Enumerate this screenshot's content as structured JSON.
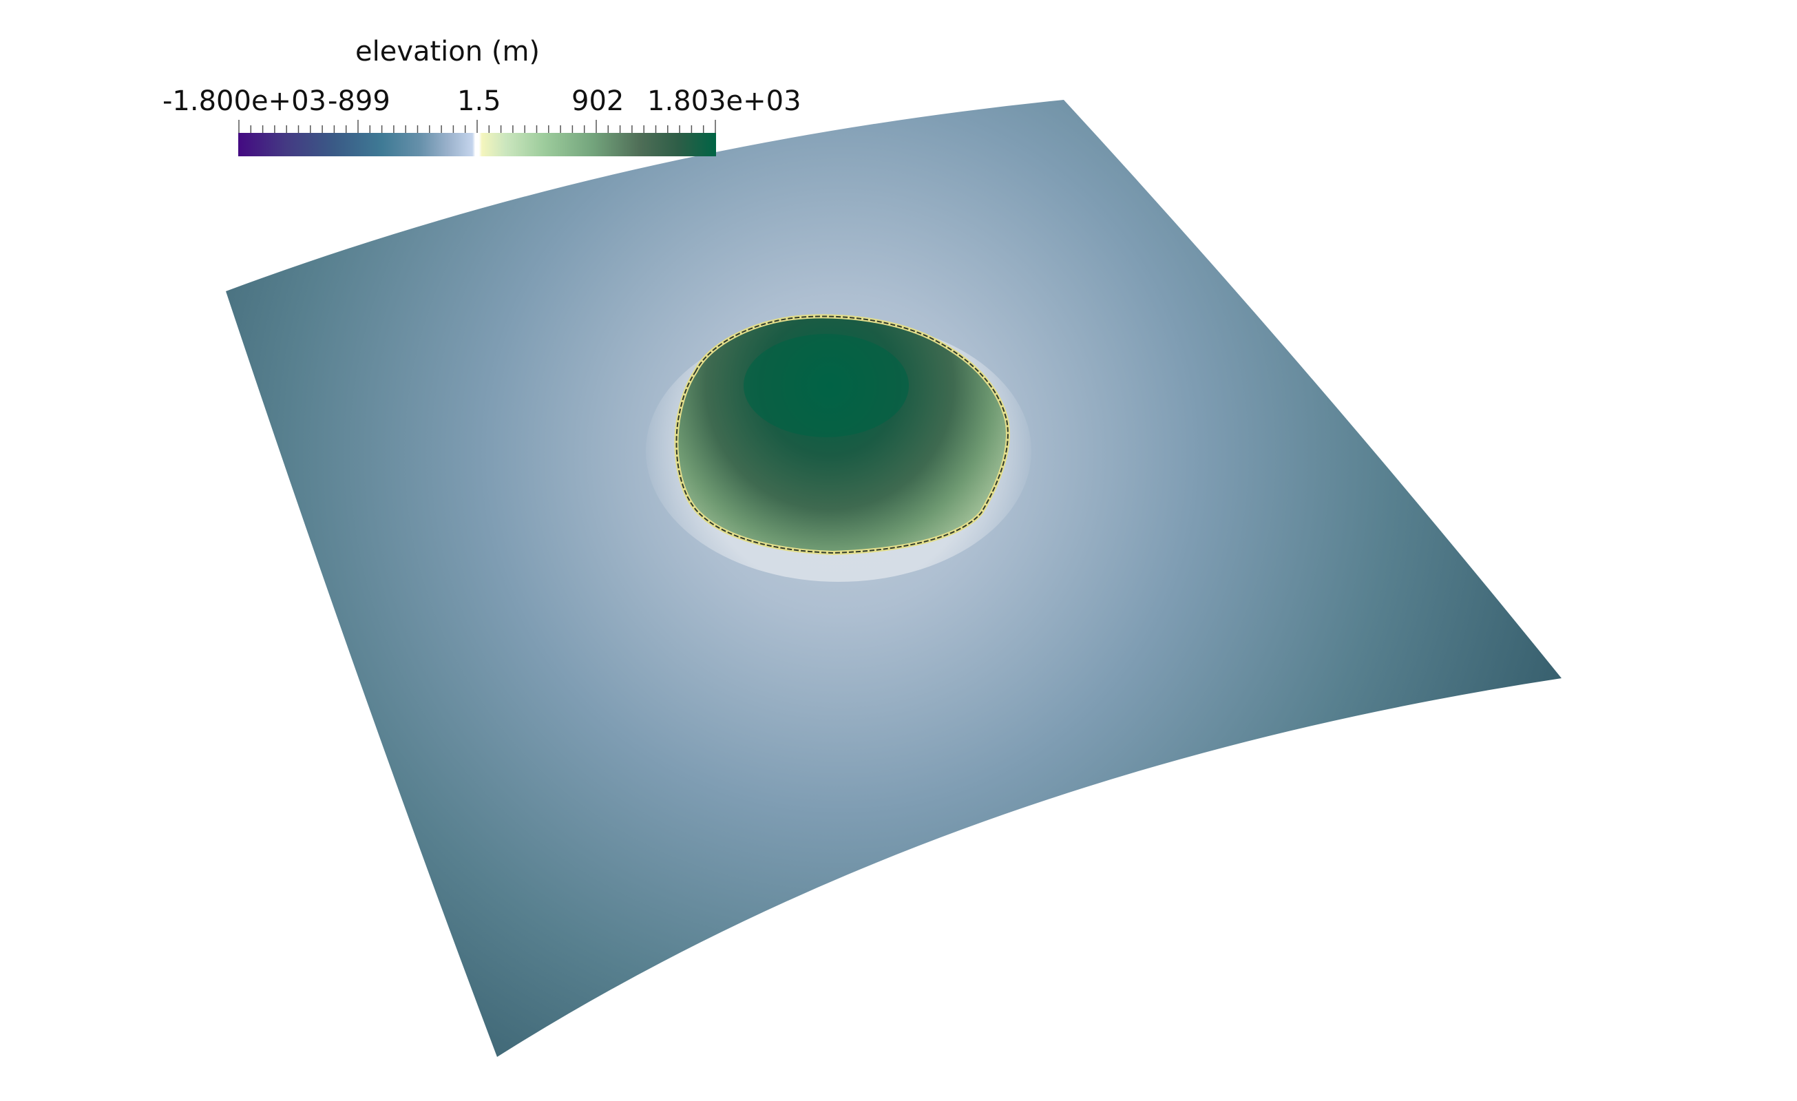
{
  "colorbar": {
    "title": "elevation (m)",
    "tick_labels": [
      "-1.800e+03",
      "-899",
      "1.5",
      "902",
      "1.803e+03"
    ],
    "colormap": [
      "#440a82",
      "#3a5a86",
      "#6690aa",
      "#c4d4ec",
      "#ffffff",
      "#f4f5bd",
      "#9dcc9c",
      "#4f6e57",
      "#006445"
    ]
  },
  "scene": {
    "surface_edge_color": "#3d6573",
    "surface_center_color": "#b9c7d7",
    "island_top_color": "#016345",
    "island_shore_color": "#e3de8c"
  }
}
